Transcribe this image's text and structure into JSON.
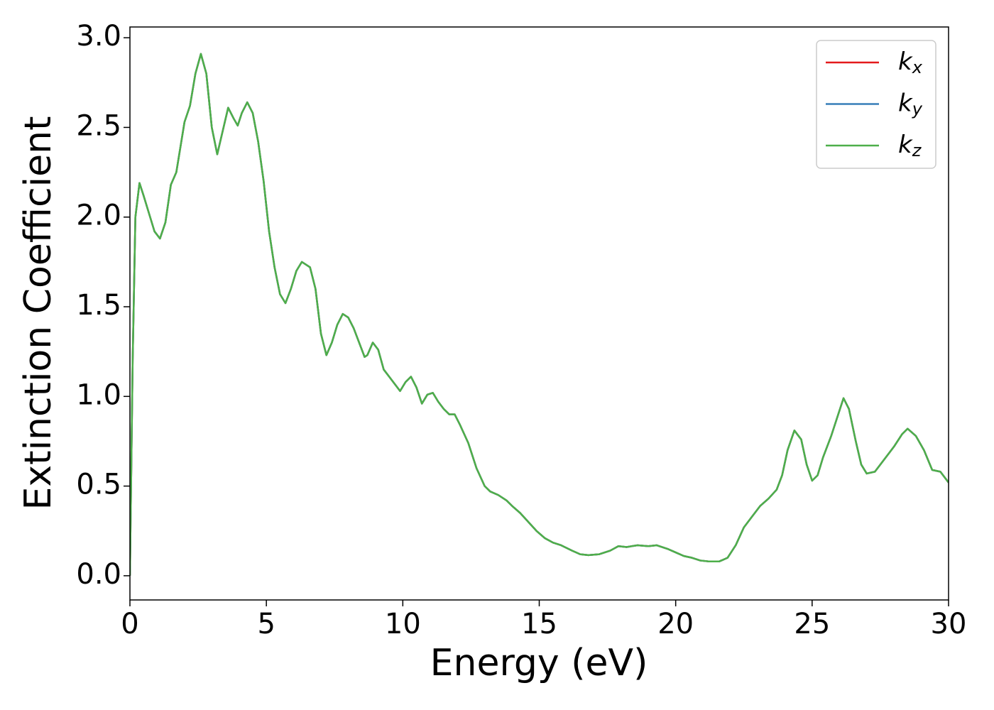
{
  "chart_data": {
    "type": "line",
    "xlabel": "Energy (eV)",
    "ylabel": "Extinction Coefficient",
    "x": [
      0,
      0.1,
      0.2,
      0.35,
      0.5,
      0.7,
      0.9,
      1.1,
      1.3,
      1.5,
      1.7,
      2.0,
      2.2,
      2.4,
      2.6,
      2.8,
      3.0,
      3.2,
      3.4,
      3.6,
      3.8,
      3.95,
      4.1,
      4.3,
      4.5,
      4.7,
      4.9,
      5.1,
      5.3,
      5.5,
      5.7,
      5.9,
      6.1,
      6.3,
      6.6,
      6.8,
      7.0,
      7.2,
      7.4,
      7.6,
      7.8,
      8.0,
      8.2,
      8.4,
      8.6,
      8.7,
      8.9,
      9.1,
      9.3,
      9.5,
      9.7,
      9.9,
      10.1,
      10.3,
      10.5,
      10.7,
      10.9,
      11.1,
      11.3,
      11.5,
      11.7,
      11.9,
      12.1,
      12.4,
      12.7,
      13.0,
      13.2,
      13.5,
      13.8,
      14.0,
      14.3,
      14.6,
      14.9,
      15.2,
      15.5,
      15.8,
      16.2,
      16.5,
      16.8,
      17.2,
      17.6,
      17.9,
      18.2,
      18.6,
      19.0,
      19.3,
      19.7,
      20.0,
      20.3,
      20.6,
      20.9,
      21.2,
      21.6,
      21.9,
      22.2,
      22.5,
      22.8,
      23.1,
      23.4,
      23.7,
      23.9,
      24.1,
      24.35,
      24.6,
      24.8,
      25.0,
      25.2,
      25.4,
      25.7,
      26.0,
      26.15,
      26.35,
      26.6,
      26.8,
      27.0,
      27.3,
      27.6,
      28.0,
      28.3,
      28.5,
      28.8,
      29.1,
      29.4,
      29.7,
      30.0
    ],
    "series": [
      {
        "name": "kx",
        "color": "#e41a1c",
        "values": [
          0,
          1.2,
          2.0,
          2.19,
          2.12,
          2.02,
          1.92,
          1.88,
          1.97,
          2.18,
          2.25,
          2.53,
          2.62,
          2.8,
          2.91,
          2.8,
          2.5,
          2.35,
          2.48,
          2.61,
          2.55,
          2.51,
          2.58,
          2.64,
          2.58,
          2.42,
          2.2,
          1.92,
          1.72,
          1.57,
          1.52,
          1.6,
          1.7,
          1.75,
          1.72,
          1.6,
          1.35,
          1.23,
          1.3,
          1.4,
          1.46,
          1.44,
          1.38,
          1.3,
          1.22,
          1.23,
          1.3,
          1.26,
          1.15,
          1.11,
          1.07,
          1.03,
          1.08,
          1.11,
          1.05,
          0.96,
          1.01,
          1.02,
          0.97,
          0.93,
          0.9,
          0.9,
          0.84,
          0.74,
          0.6,
          0.5,
          0.47,
          0.45,
          0.42,
          0.39,
          0.35,
          0.3,
          0.25,
          0.21,
          0.185,
          0.17,
          0.14,
          0.12,
          0.115,
          0.12,
          0.14,
          0.165,
          0.16,
          0.17,
          0.165,
          0.17,
          0.15,
          0.13,
          0.11,
          0.1,
          0.085,
          0.08,
          0.08,
          0.1,
          0.17,
          0.27,
          0.33,
          0.39,
          0.43,
          0.48,
          0.56,
          0.7,
          0.81,
          0.76,
          0.62,
          0.53,
          0.56,
          0.66,
          0.78,
          0.92,
          0.99,
          0.93,
          0.75,
          0.62,
          0.57,
          0.58,
          0.64,
          0.72,
          0.79,
          0.82,
          0.78,
          0.7,
          0.59,
          0.58,
          0.52
        ]
      },
      {
        "name": "ky",
        "color": "#377eb8",
        "values": [
          0,
          1.2,
          2.0,
          2.19,
          2.12,
          2.02,
          1.92,
          1.88,
          1.97,
          2.18,
          2.25,
          2.53,
          2.62,
          2.8,
          2.91,
          2.8,
          2.5,
          2.35,
          2.48,
          2.61,
          2.55,
          2.51,
          2.58,
          2.64,
          2.58,
          2.42,
          2.2,
          1.92,
          1.72,
          1.57,
          1.52,
          1.6,
          1.7,
          1.75,
          1.72,
          1.6,
          1.35,
          1.23,
          1.3,
          1.4,
          1.46,
          1.44,
          1.38,
          1.3,
          1.22,
          1.23,
          1.3,
          1.26,
          1.15,
          1.11,
          1.07,
          1.03,
          1.08,
          1.11,
          1.05,
          0.96,
          1.01,
          1.02,
          0.97,
          0.93,
          0.9,
          0.9,
          0.84,
          0.74,
          0.6,
          0.5,
          0.47,
          0.45,
          0.42,
          0.39,
          0.35,
          0.3,
          0.25,
          0.21,
          0.185,
          0.17,
          0.14,
          0.12,
          0.115,
          0.12,
          0.14,
          0.165,
          0.16,
          0.17,
          0.165,
          0.17,
          0.15,
          0.13,
          0.11,
          0.1,
          0.085,
          0.08,
          0.08,
          0.1,
          0.17,
          0.27,
          0.33,
          0.39,
          0.43,
          0.48,
          0.56,
          0.7,
          0.81,
          0.76,
          0.62,
          0.53,
          0.56,
          0.66,
          0.78,
          0.92,
          0.99,
          0.93,
          0.75,
          0.62,
          0.57,
          0.58,
          0.64,
          0.72,
          0.79,
          0.82,
          0.78,
          0.7,
          0.59,
          0.58,
          0.52
        ]
      },
      {
        "name": "kz",
        "color": "#4daf4a",
        "values": [
          0,
          1.2,
          2.0,
          2.19,
          2.12,
          2.02,
          1.92,
          1.88,
          1.97,
          2.18,
          2.25,
          2.53,
          2.62,
          2.8,
          2.91,
          2.8,
          2.5,
          2.35,
          2.48,
          2.61,
          2.55,
          2.51,
          2.58,
          2.64,
          2.58,
          2.42,
          2.2,
          1.92,
          1.72,
          1.57,
          1.52,
          1.6,
          1.7,
          1.75,
          1.72,
          1.6,
          1.35,
          1.23,
          1.3,
          1.4,
          1.46,
          1.44,
          1.38,
          1.3,
          1.22,
          1.23,
          1.3,
          1.26,
          1.15,
          1.11,
          1.07,
          1.03,
          1.08,
          1.11,
          1.05,
          0.96,
          1.01,
          1.02,
          0.97,
          0.93,
          0.9,
          0.9,
          0.84,
          0.74,
          0.6,
          0.5,
          0.47,
          0.45,
          0.42,
          0.39,
          0.35,
          0.3,
          0.25,
          0.21,
          0.185,
          0.17,
          0.14,
          0.12,
          0.115,
          0.12,
          0.14,
          0.165,
          0.16,
          0.17,
          0.165,
          0.17,
          0.15,
          0.13,
          0.11,
          0.1,
          0.085,
          0.08,
          0.08,
          0.1,
          0.17,
          0.27,
          0.33,
          0.39,
          0.43,
          0.48,
          0.56,
          0.7,
          0.81,
          0.76,
          0.62,
          0.53,
          0.56,
          0.66,
          0.78,
          0.92,
          0.99,
          0.93,
          0.75,
          0.62,
          0.57,
          0.58,
          0.64,
          0.72,
          0.79,
          0.82,
          0.78,
          0.7,
          0.59,
          0.58,
          0.52
        ]
      }
    ],
    "xlim": [
      0,
      30
    ],
    "xticks": [
      0,
      5,
      10,
      15,
      20,
      25,
      30
    ],
    "ylim": [
      -0.135,
      3.06
    ],
    "yticks": [
      {
        "value": 0,
        "label": "0.0"
      },
      0.5,
      {
        "value": 1,
        "label": "1.0"
      },
      1.5,
      {
        "value": 2,
        "label": "2.0"
      },
      2.5,
      {
        "value": 3,
        "label": "3.0"
      }
    ],
    "grid": false,
    "legend": "upper right"
  }
}
